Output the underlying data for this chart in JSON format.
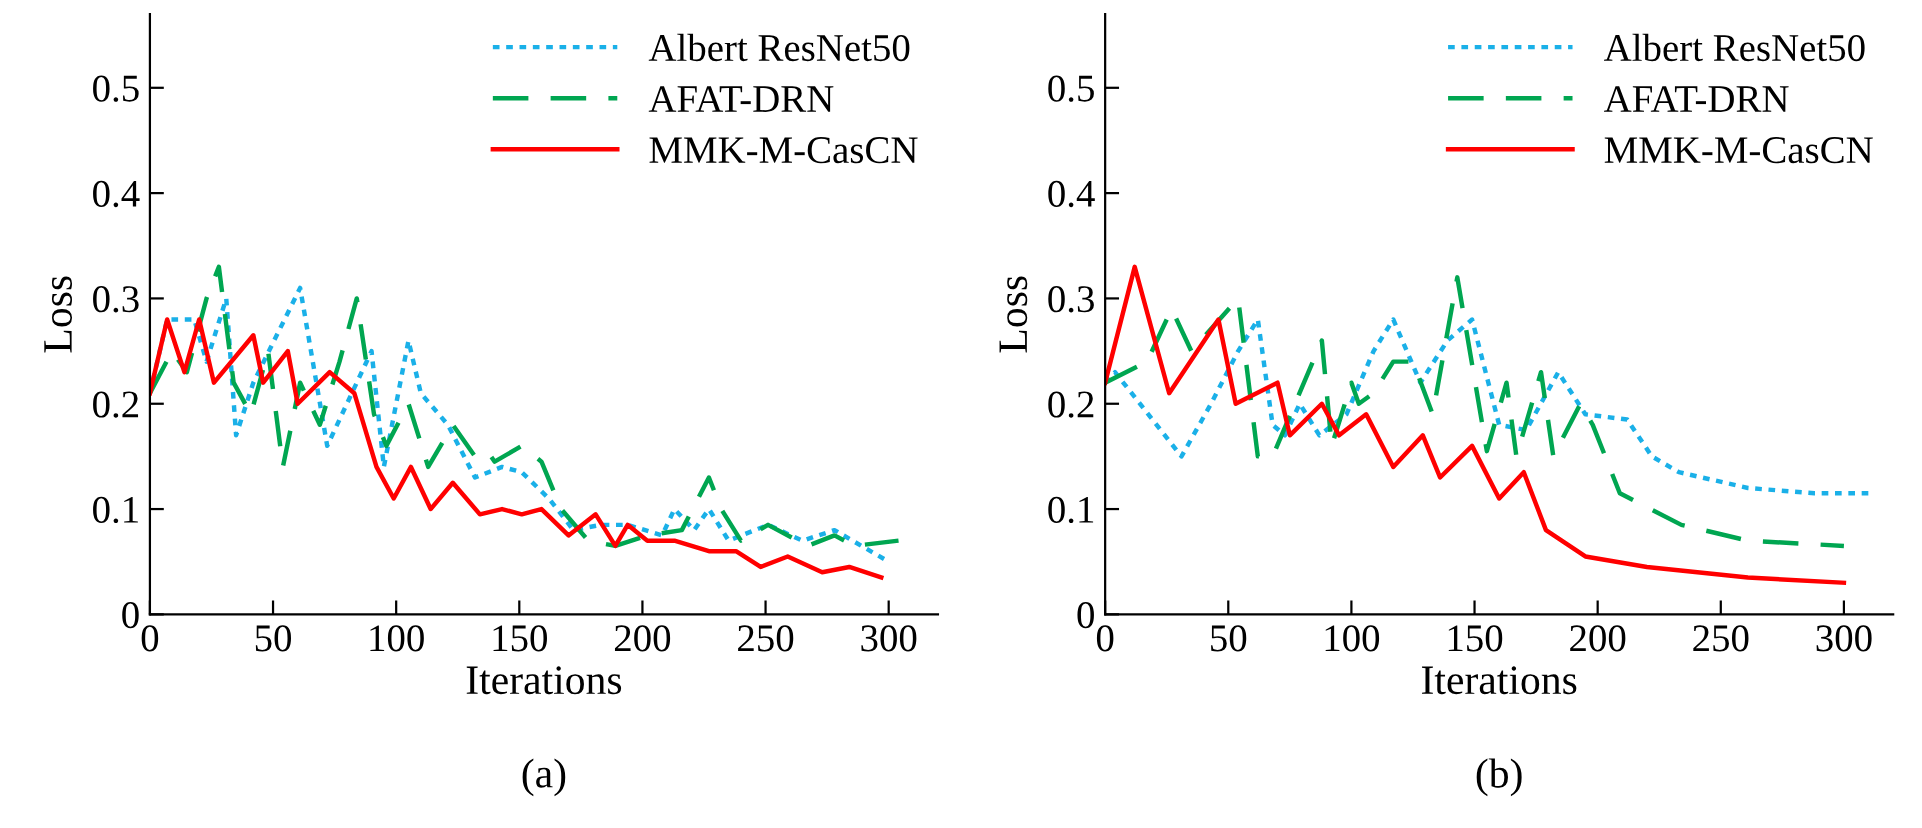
{
  "chart_data": [
    {
      "type": "line",
      "xlabel": "Iterations",
      "ylabel": "Loss",
      "annotations": [
        "(a)"
      ],
      "xlim": [
        0,
        320
      ],
      "ylim": [
        0,
        0.57
      ],
      "xticks": [
        0,
        50,
        100,
        150,
        200,
        250,
        300
      ],
      "yticks": [
        0,
        0.1,
        0.2,
        0.3,
        0.4,
        0.5
      ],
      "legend": "top right",
      "grid": false,
      "series": [
        {
          "name": "Albert ResNet50",
          "color": "#1ab0e8",
          "line_style": "dotted",
          "x": [
            0,
            7,
            18,
            23,
            31,
            35,
            42,
            61,
            72,
            90,
            95,
            105,
            110,
            121,
            132,
            143,
            151,
            162,
            172,
            183,
            194,
            208,
            213,
            221,
            227,
            235,
            251,
            265,
            278,
            300
          ],
          "values": [
            0.21,
            0.28,
            0.28,
            0.24,
            0.3,
            0.17,
            0.22,
            0.31,
            0.16,
            0.25,
            0.14,
            0.26,
            0.21,
            0.18,
            0.13,
            0.14,
            0.135,
            0.11,
            0.08,
            0.085,
            0.085,
            0.075,
            0.1,
            0.08,
            0.1,
            0.07,
            0.085,
            0.07,
            0.08,
            0.05
          ]
        },
        {
          "name": "AFAT-DRN",
          "color": "#00a651",
          "line_style": "dashed",
          "x": [
            0,
            9,
            15,
            23,
            28,
            34,
            41,
            48,
            54,
            61,
            69,
            77,
            84,
            91,
            96,
            105,
            113,
            123,
            132,
            137,
            140,
            151,
            159,
            167,
            178,
            189,
            202,
            216,
            227,
            232,
            240,
            251,
            267,
            278,
            286,
            304
          ],
          "values": [
            0.21,
            0.25,
            0.23,
            0.3,
            0.33,
            0.22,
            0.19,
            0.25,
            0.14,
            0.22,
            0.18,
            0.24,
            0.3,
            0.19,
            0.16,
            0.2,
            0.14,
            0.18,
            0.15,
            0.155,
            0.145,
            0.16,
            0.145,
            0.1,
            0.07,
            0.065,
            0.075,
            0.08,
            0.13,
            0.1,
            0.07,
            0.085,
            0.065,
            0.075,
            0.065,
            0.07
          ]
        },
        {
          "name": "MMK-M-CasCN",
          "color": "#ff0000",
          "line_style": "solid",
          "x": [
            0,
            7,
            14,
            20,
            26,
            42,
            46,
            56,
            60,
            73,
            83,
            92,
            99,
            106,
            114,
            123,
            134,
            143,
            151,
            159,
            170,
            181,
            189,
            194,
            202,
            213,
            227,
            238,
            248,
            259,
            273,
            284,
            297
          ],
          "values": [
            0.21,
            0.28,
            0.23,
            0.28,
            0.22,
            0.265,
            0.22,
            0.25,
            0.2,
            0.23,
            0.21,
            0.14,
            0.11,
            0.14,
            0.1,
            0.125,
            0.095,
            0.1,
            0.095,
            0.1,
            0.075,
            0.095,
            0.065,
            0.085,
            0.07,
            0.07,
            0.06,
            0.06,
            0.045,
            0.055,
            0.04,
            0.045,
            0.035
          ]
        }
      ]
    },
    {
      "type": "line",
      "xlabel": "Iterations",
      "ylabel": "Loss",
      "annotations": [
        "(b)"
      ],
      "xlim": [
        0,
        320
      ],
      "ylim": [
        0,
        0.57
      ],
      "xticks": [
        0,
        50,
        100,
        150,
        200,
        250,
        300
      ],
      "yticks": [
        0,
        0.1,
        0.2,
        0.3,
        0.4,
        0.5
      ],
      "legend": "top right",
      "grid": false,
      "series": [
        {
          "name": "Albert ResNet50",
          "color": "#1ab0e8",
          "line_style": "dotted",
          "x": [
            0,
            4,
            31,
            43,
            54,
            62,
            68,
            73,
            79,
            87,
            98,
            109,
            117,
            128,
            139,
            149,
            160,
            171,
            184,
            195,
            212,
            222,
            233,
            261,
            288,
            312
          ],
          "values": [
            0.22,
            0.23,
            0.15,
            0.2,
            0.25,
            0.28,
            0.18,
            0.17,
            0.2,
            0.17,
            0.19,
            0.25,
            0.28,
            0.22,
            0.26,
            0.28,
            0.18,
            0.175,
            0.23,
            0.19,
            0.185,
            0.15,
            0.135,
            0.12,
            0.115,
            0.115
          ]
        },
        {
          "name": "AFAT-DRN",
          "color": "#00a651",
          "line_style": "dashed",
          "x": [
            0,
            17,
            27,
            35,
            54,
            62,
            68,
            88,
            92,
            100,
            103,
            109,
            117,
            125,
            133,
            143,
            155,
            163,
            167,
            177,
            182,
            193,
            198,
            209,
            234,
            261,
            300
          ],
          "values": [
            0.22,
            0.24,
            0.29,
            0.25,
            0.3,
            0.15,
            0.15,
            0.26,
            0.16,
            0.22,
            0.2,
            0.21,
            0.24,
            0.24,
            0.19,
            0.32,
            0.155,
            0.22,
            0.15,
            0.23,
            0.15,
            0.2,
            0.18,
            0.115,
            0.085,
            0.07,
            0.065
          ]
        },
        {
          "name": "MMK-M-CasCN",
          "color": "#ff0000",
          "line_style": "solid",
          "x": [
            0,
            12,
            26,
            46,
            53,
            70,
            75,
            88,
            95,
            106,
            117,
            129,
            136,
            149,
            160,
            170,
            179,
            195,
            220,
            261,
            300
          ],
          "values": [
            0.22,
            0.33,
            0.21,
            0.28,
            0.2,
            0.22,
            0.17,
            0.2,
            0.17,
            0.19,
            0.14,
            0.17,
            0.13,
            0.16,
            0.11,
            0.135,
            0.08,
            0.055,
            0.045,
            0.035,
            0.03
          ]
        }
      ]
    }
  ]
}
